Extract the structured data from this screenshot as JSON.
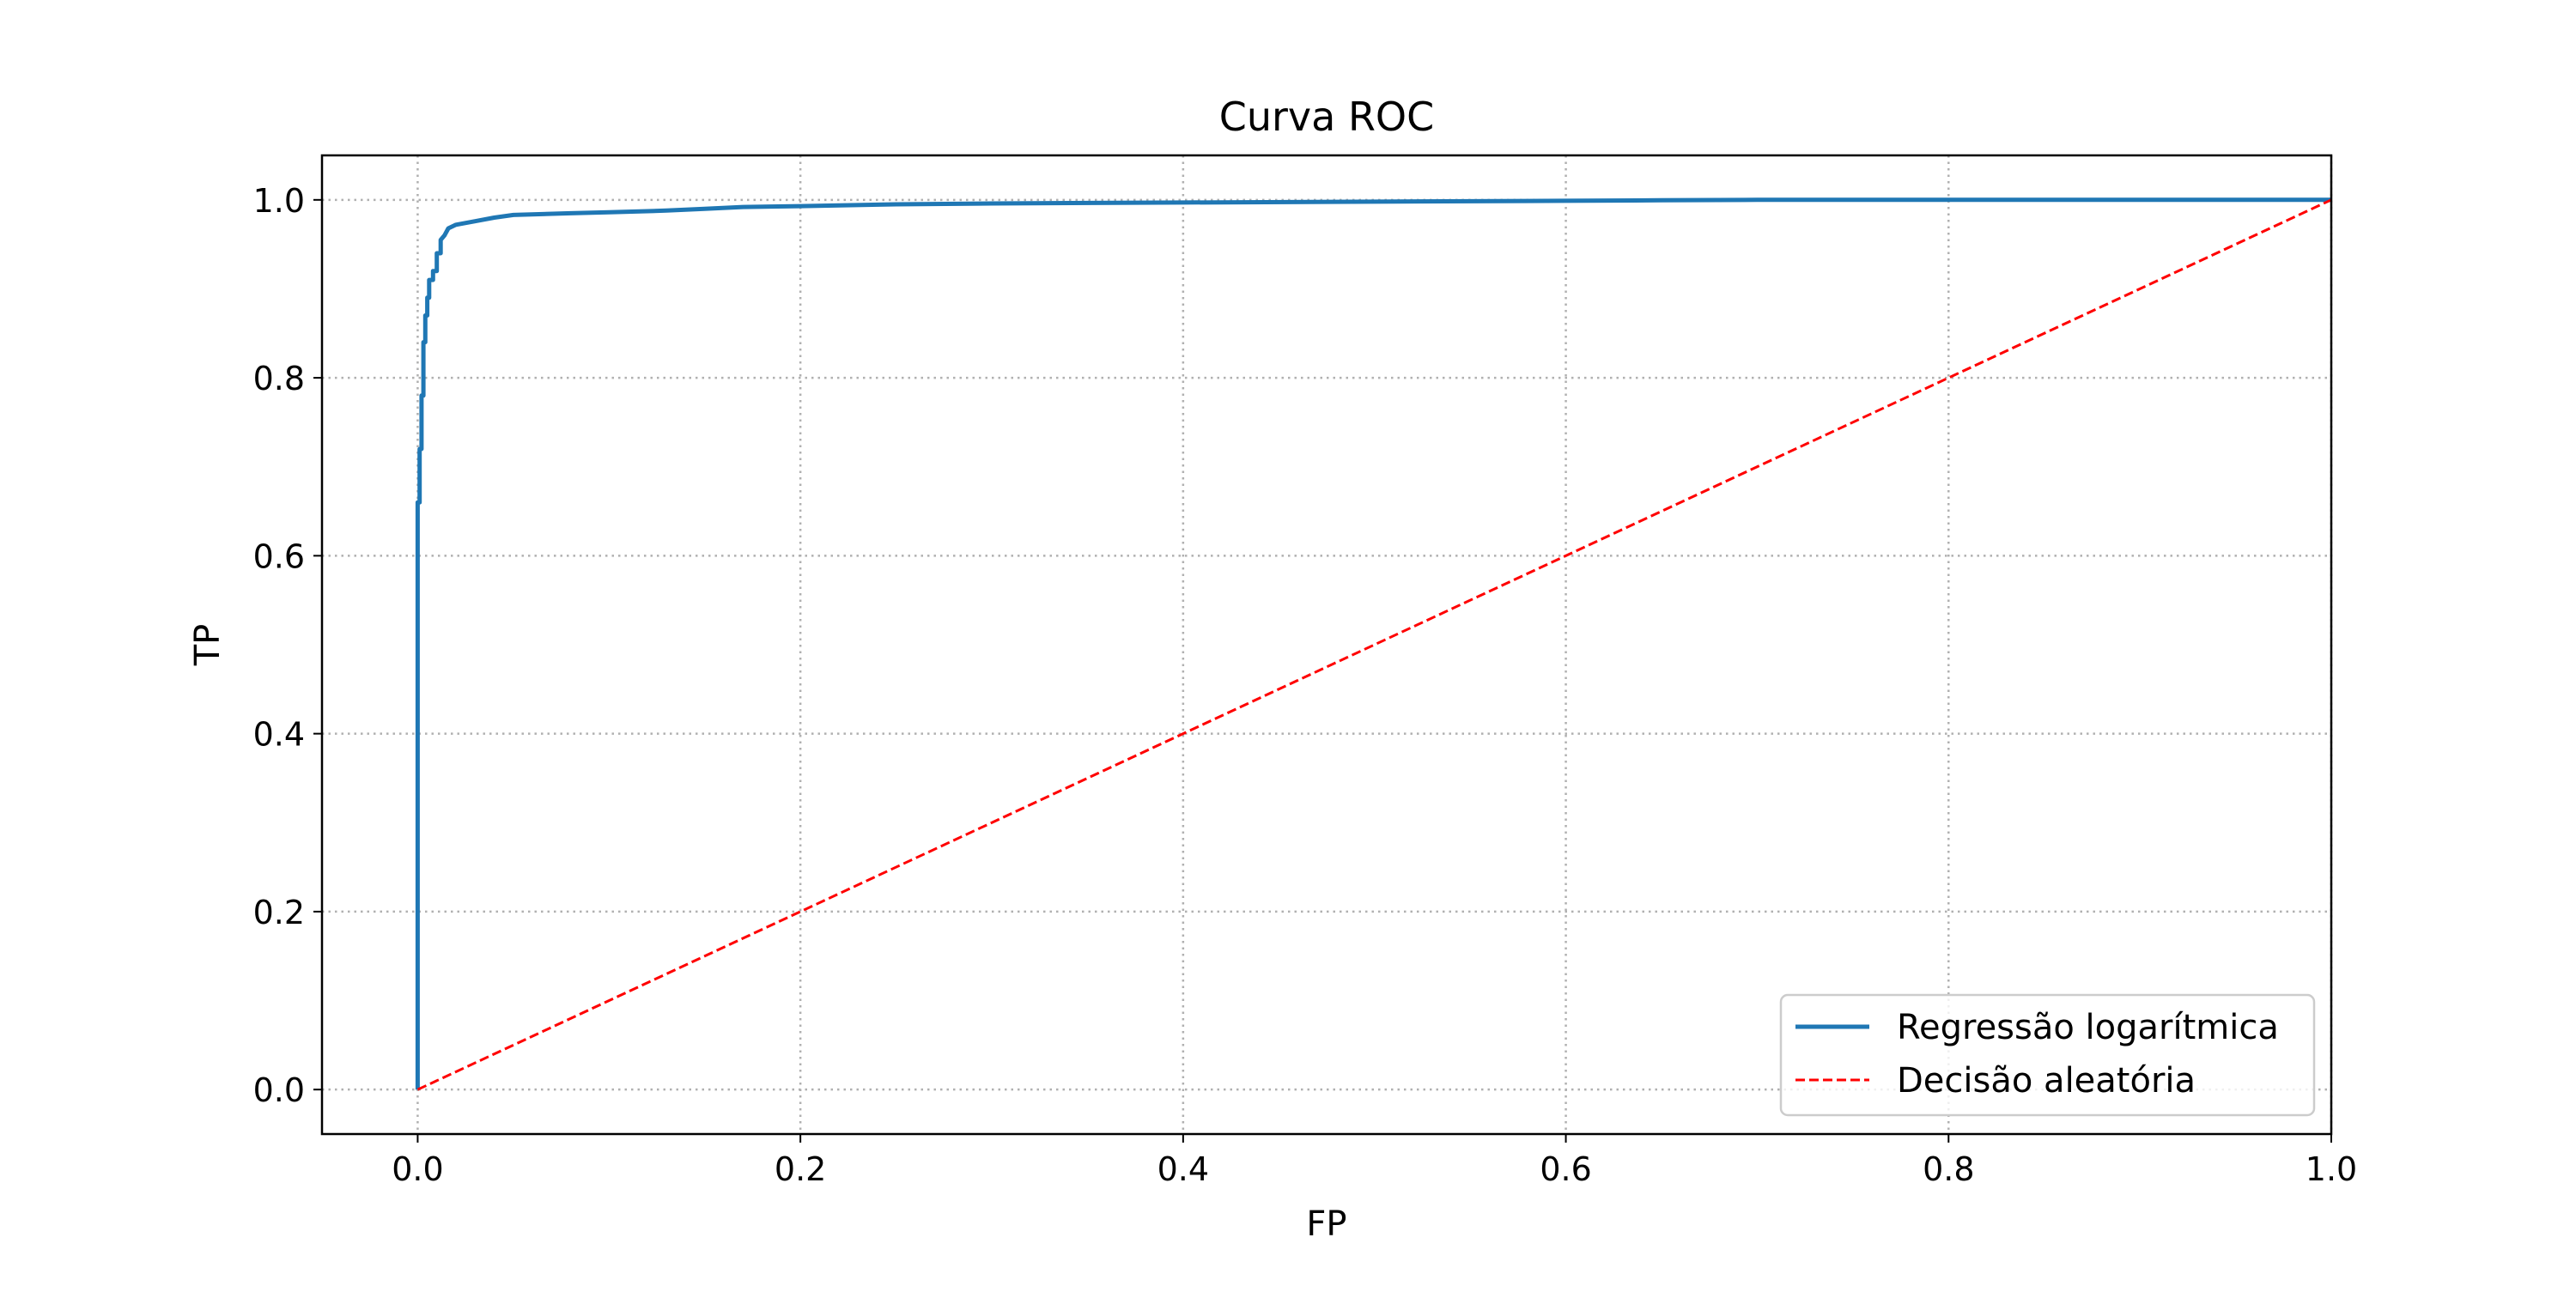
{
  "chart_data": {
    "type": "line",
    "title": "Curva ROC",
    "xlabel": "FP",
    "ylabel": "TP",
    "xlim": [
      -0.05,
      1.0
    ],
    "ylim": [
      -0.05,
      1.05
    ],
    "xticks": [
      0.0,
      0.2,
      0.4,
      0.6,
      0.8,
      1.0
    ],
    "xtick_labels": [
      "0.0",
      "0.2",
      "0.4",
      "0.6",
      "0.8",
      "1.0"
    ],
    "yticks": [
      0.0,
      0.2,
      0.4,
      0.6,
      0.8,
      1.0
    ],
    "ytick_labels": [
      "0.0",
      "0.2",
      "0.4",
      "0.6",
      "0.8",
      "1.0"
    ],
    "grid": true,
    "grid_style": "dotted",
    "legend_position": "lower-right",
    "series": [
      {
        "name": "Regressão logarítmica",
        "color": "#1f77b4",
        "style": "solid",
        "x": [
          0.0,
          0.0,
          0.0,
          0.001,
          0.001,
          0.002,
          0.002,
          0.003,
          0.003,
          0.004,
          0.004,
          0.005,
          0.005,
          0.006,
          0.006,
          0.008,
          0.008,
          0.01,
          0.01,
          0.012,
          0.012,
          0.014,
          0.016,
          0.02,
          0.03,
          0.04,
          0.05,
          0.08,
          0.1,
          0.13,
          0.15,
          0.17,
          0.2,
          0.25,
          0.3,
          0.4,
          0.5,
          0.6,
          0.65,
          0.7,
          0.8,
          0.9,
          1.0
        ],
        "y": [
          0.0,
          0.58,
          0.66,
          0.66,
          0.72,
          0.72,
          0.78,
          0.78,
          0.84,
          0.84,
          0.87,
          0.87,
          0.89,
          0.89,
          0.91,
          0.91,
          0.92,
          0.92,
          0.94,
          0.94,
          0.955,
          0.96,
          0.968,
          0.972,
          0.976,
          0.98,
          0.983,
          0.985,
          0.986,
          0.988,
          0.99,
          0.992,
          0.993,
          0.995,
          0.996,
          0.997,
          0.998,
          0.999,
          0.9995,
          1.0,
          1.0,
          1.0,
          1.0
        ]
      },
      {
        "name": "Decisão aleatória",
        "color": "#ff0000",
        "style": "dashed",
        "x": [
          0.0,
          1.0
        ],
        "y": [
          0.0,
          1.0
        ]
      }
    ]
  }
}
